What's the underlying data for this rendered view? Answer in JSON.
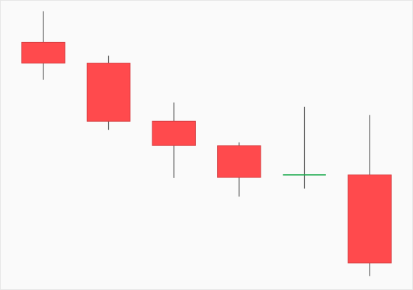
{
  "chart_data": {
    "type": "candlestick",
    "title": "",
    "xlabel": "",
    "ylabel": "",
    "grid": false,
    "ylim": [
      0,
      100
    ],
    "colors": {
      "down": "#ff4a4d",
      "down_border": "#d63d40",
      "doji": "#1aaa4c",
      "wick": "#555555"
    },
    "candles": [
      {
        "open": 85.9,
        "high": 96.8,
        "low": 72.8,
        "close": 78.6
      },
      {
        "open": 78.6,
        "high": 81.2,
        "low": 55.2,
        "close": 58.2
      },
      {
        "open": 58.2,
        "high": 64.8,
        "low": 38.3,
        "close": 49.7
      },
      {
        "open": 49.6,
        "high": 50.8,
        "low": 31.8,
        "close": 38.5
      },
      {
        "open": 39.4,
        "high": 63.3,
        "low": 34.6,
        "close": 39.4
      },
      {
        "open": 39.4,
        "high": 60.4,
        "low": 3.9,
        "close": 8.5
      }
    ]
  }
}
